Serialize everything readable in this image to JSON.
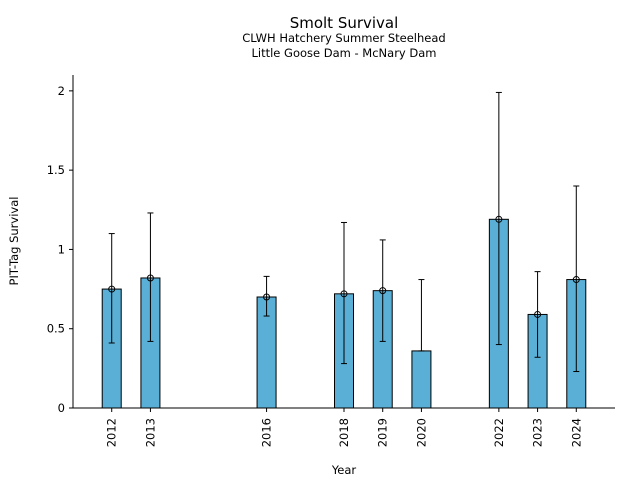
{
  "chart_data": {
    "type": "bar",
    "title": "Smolt Survival",
    "subtitle_lines": [
      "CLWH Hatchery Summer Steelhead",
      "Little Goose Dam - McNary Dam"
    ],
    "xlabel": "Year",
    "ylabel": "PIT-Tag Survival",
    "ylim": [
      0,
      2.1
    ],
    "yticks": [
      0,
      0.5,
      1,
      1.5,
      2
    ],
    "ytick_labels": [
      "0",
      "0.5",
      "1",
      "1.5",
      "2"
    ],
    "xlim": [
      2011.0,
      2025.0
    ],
    "grid": false,
    "bar_color": "#5aafd6",
    "edge_color": "#000000",
    "points": [
      {
        "year": 2012,
        "label": "2012",
        "value": 0.75,
        "lower": 0.41,
        "upper": 1.1,
        "marker": true
      },
      {
        "year": 2013,
        "label": "2013",
        "value": 0.82,
        "lower": 0.42,
        "upper": 1.23,
        "marker": true
      },
      {
        "year": 2016,
        "label": "2016",
        "value": 0.7,
        "lower": 0.58,
        "upper": 0.83,
        "marker": true
      },
      {
        "year": 2018,
        "label": "2018",
        "value": 0.72,
        "lower": 0.28,
        "upper": 1.17,
        "marker": true
      },
      {
        "year": 2019,
        "label": "2019",
        "value": 0.74,
        "lower": 0.42,
        "upper": 1.06,
        "marker": true
      },
      {
        "year": 2020,
        "label": "2020",
        "value": 0.36,
        "lower": 0.36,
        "upper": 0.81,
        "marker": false
      },
      {
        "year": 2022,
        "label": "2022",
        "value": 1.19,
        "lower": 0.4,
        "upper": 1.99,
        "marker": true
      },
      {
        "year": 2023,
        "label": "2023",
        "value": 0.59,
        "lower": 0.32,
        "upper": 0.86,
        "marker": true
      },
      {
        "year": 2024,
        "label": "2024",
        "value": 0.81,
        "lower": 0.23,
        "upper": 1.4,
        "marker": true
      }
    ]
  }
}
